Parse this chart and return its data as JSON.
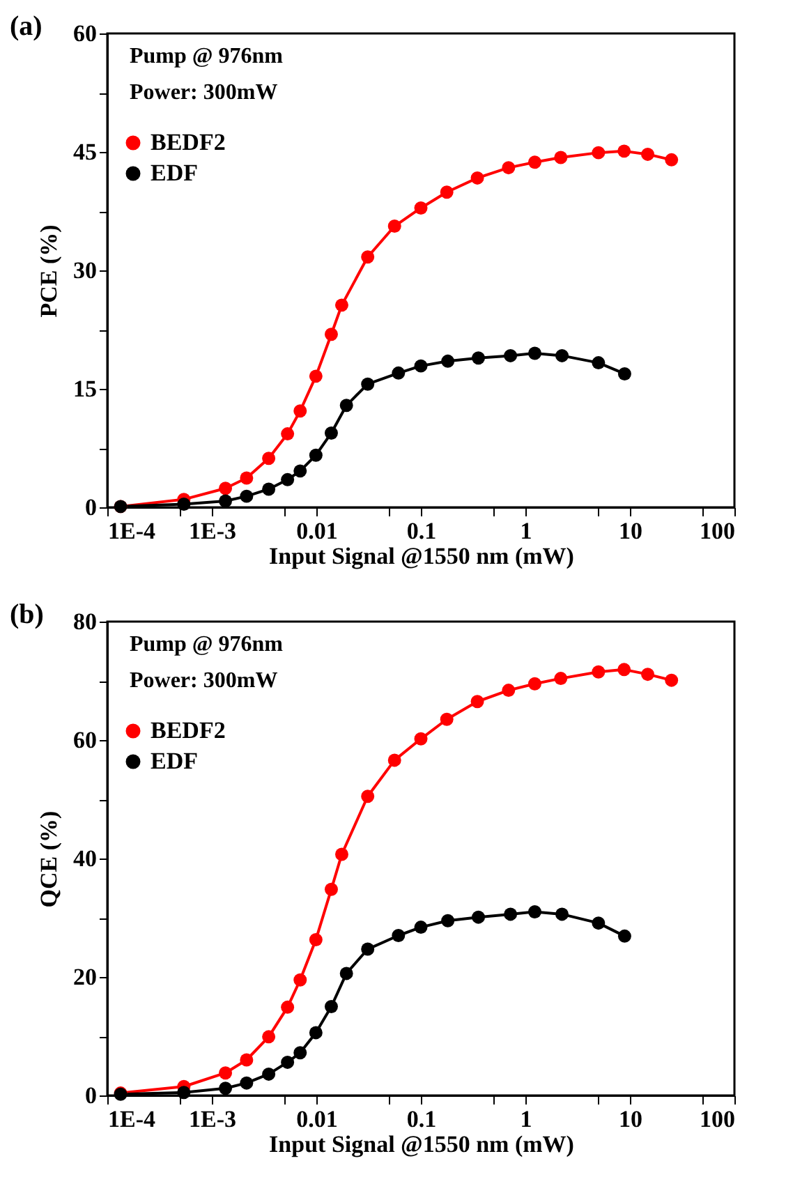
{
  "chart_data": [
    {
      "type": "line",
      "title": "(a)",
      "xlabel": "Input Signal @1550 nm (mW)",
      "ylabel": "PCE (%)",
      "log": "x",
      "grid": false,
      "legend": "top left",
      "marker": "circle",
      "line_style": "solid",
      "annotations": [
        "Pump @ 976nm",
        "Power: 300mW"
      ],
      "xlim": [
        0.0001,
        100
      ],
      "xticks": [
        {
          "value": 0.0001,
          "label": "1E-4"
        },
        {
          "value": 0.0005,
          "label": null
        },
        {
          "value": 0.001,
          "label": "1E-3"
        },
        {
          "value": 0.005,
          "label": null
        },
        0.01,
        {
          "value": 0.05,
          "label": null
        },
        0.1,
        {
          "value": 0.5,
          "label": null
        },
        1,
        {
          "value": 5,
          "label": null
        },
        10,
        {
          "value": 50,
          "label": null
        },
        100
      ],
      "ylim": [
        0,
        60
      ],
      "yticks": [
        0,
        {
          "value": 7.5,
          "label": null
        },
        15,
        {
          "value": 22.5,
          "label": null
        },
        30,
        {
          "value": 37.5,
          "label": null
        },
        45,
        {
          "value": 52.5,
          "label": null
        },
        60
      ],
      "series": [
        {
          "name": "BEDF2",
          "color": "#ff0000",
          "x": [
            0.000134,
            0.00054,
            0.00135,
            0.00215,
            0.0035,
            0.0053,
            0.007,
            0.0099,
            0.0139,
            0.0175,
            0.031,
            0.056,
            0.1,
            0.177,
            0.347,
            0.69,
            1.23,
            2.18,
            5.0,
            8.8,
            14.8,
            25
          ],
          "values": [
            0.1,
            1.0,
            2.4,
            3.7,
            6.2,
            9.3,
            12.2,
            16.6,
            21.9,
            25.6,
            31.7,
            35.6,
            37.9,
            39.9,
            41.7,
            43.0,
            43.7,
            44.3,
            44.9,
            45.1,
            44.7,
            44.0
          ]
        },
        {
          "name": "EDF",
          "color": "#000000",
          "x": [
            0.000134,
            0.00054,
            0.00135,
            0.00215,
            0.0035,
            0.0053,
            0.007,
            0.0099,
            0.0139,
            0.0194,
            0.031,
            0.061,
            0.1,
            0.181,
            0.355,
            0.72,
            1.23,
            2.24,
            5.0,
            8.9
          ],
          "values": [
            0.1,
            0.4,
            0.8,
            1.4,
            2.3,
            3.5,
            4.6,
            6.6,
            9.4,
            12.9,
            15.6,
            17.0,
            17.9,
            18.5,
            18.9,
            19.2,
            19.5,
            19.2,
            18.3,
            16.9
          ]
        }
      ]
    },
    {
      "type": "line",
      "title": "(b)",
      "xlabel": "Input Signal @1550 nm (mW)",
      "ylabel": "QCE (%)",
      "log": "x",
      "grid": false,
      "legend": "top left",
      "marker": "circle",
      "line_style": "solid",
      "annotations": [
        "Pump @ 976nm",
        "Power: 300mW"
      ],
      "xlim": [
        0.0001,
        100
      ],
      "xticks": [
        {
          "value": 0.0001,
          "label": "1E-4"
        },
        {
          "value": 0.0005,
          "label": null
        },
        {
          "value": 0.001,
          "label": "1E-3"
        },
        {
          "value": 0.005,
          "label": null
        },
        0.01,
        {
          "value": 0.05,
          "label": null
        },
        0.1,
        {
          "value": 0.5,
          "label": null
        },
        1,
        {
          "value": 5,
          "label": null
        },
        10,
        {
          "value": 50,
          "label": null
        },
        100
      ],
      "ylim": [
        0,
        80
      ],
      "yticks": [
        0,
        {
          "value": 10,
          "label": null
        },
        20,
        {
          "value": 30,
          "label": null
        },
        40,
        {
          "value": 50,
          "label": null
        },
        60,
        {
          "value": 70,
          "label": null
        },
        80
      ],
      "series": [
        {
          "name": "BEDF2",
          "color": "#ff0000",
          "x": [
            0.000134,
            0.00054,
            0.00135,
            0.00215,
            0.0035,
            0.0053,
            0.007,
            0.0099,
            0.0139,
            0.0175,
            0.031,
            0.056,
            0.1,
            0.177,
            0.347,
            0.69,
            1.23,
            2.18,
            5.0,
            8.8,
            14.8,
            25
          ],
          "values": [
            0.4,
            1.5,
            3.8,
            6.0,
            9.9,
            14.9,
            19.5,
            26.3,
            34.8,
            40.7,
            50.5,
            56.6,
            60.2,
            63.5,
            66.5,
            68.4,
            69.5,
            70.4,
            71.5,
            71.9,
            71.1,
            70.1
          ]
        },
        {
          "name": "EDF",
          "color": "#000000",
          "x": [
            0.000134,
            0.00054,
            0.00135,
            0.00215,
            0.0035,
            0.0053,
            0.007,
            0.0099,
            0.0139,
            0.0194,
            0.031,
            0.061,
            0.1,
            0.181,
            0.355,
            0.72,
            1.23,
            2.24,
            5.0,
            8.9
          ],
          "values": [
            0.2,
            0.5,
            1.2,
            2.1,
            3.6,
            5.6,
            7.2,
            10.6,
            15.0,
            20.6,
            24.7,
            27.0,
            28.4,
            29.5,
            30.1,
            30.6,
            31.0,
            30.6,
            29.1,
            26.9
          ]
        }
      ]
    }
  ]
}
